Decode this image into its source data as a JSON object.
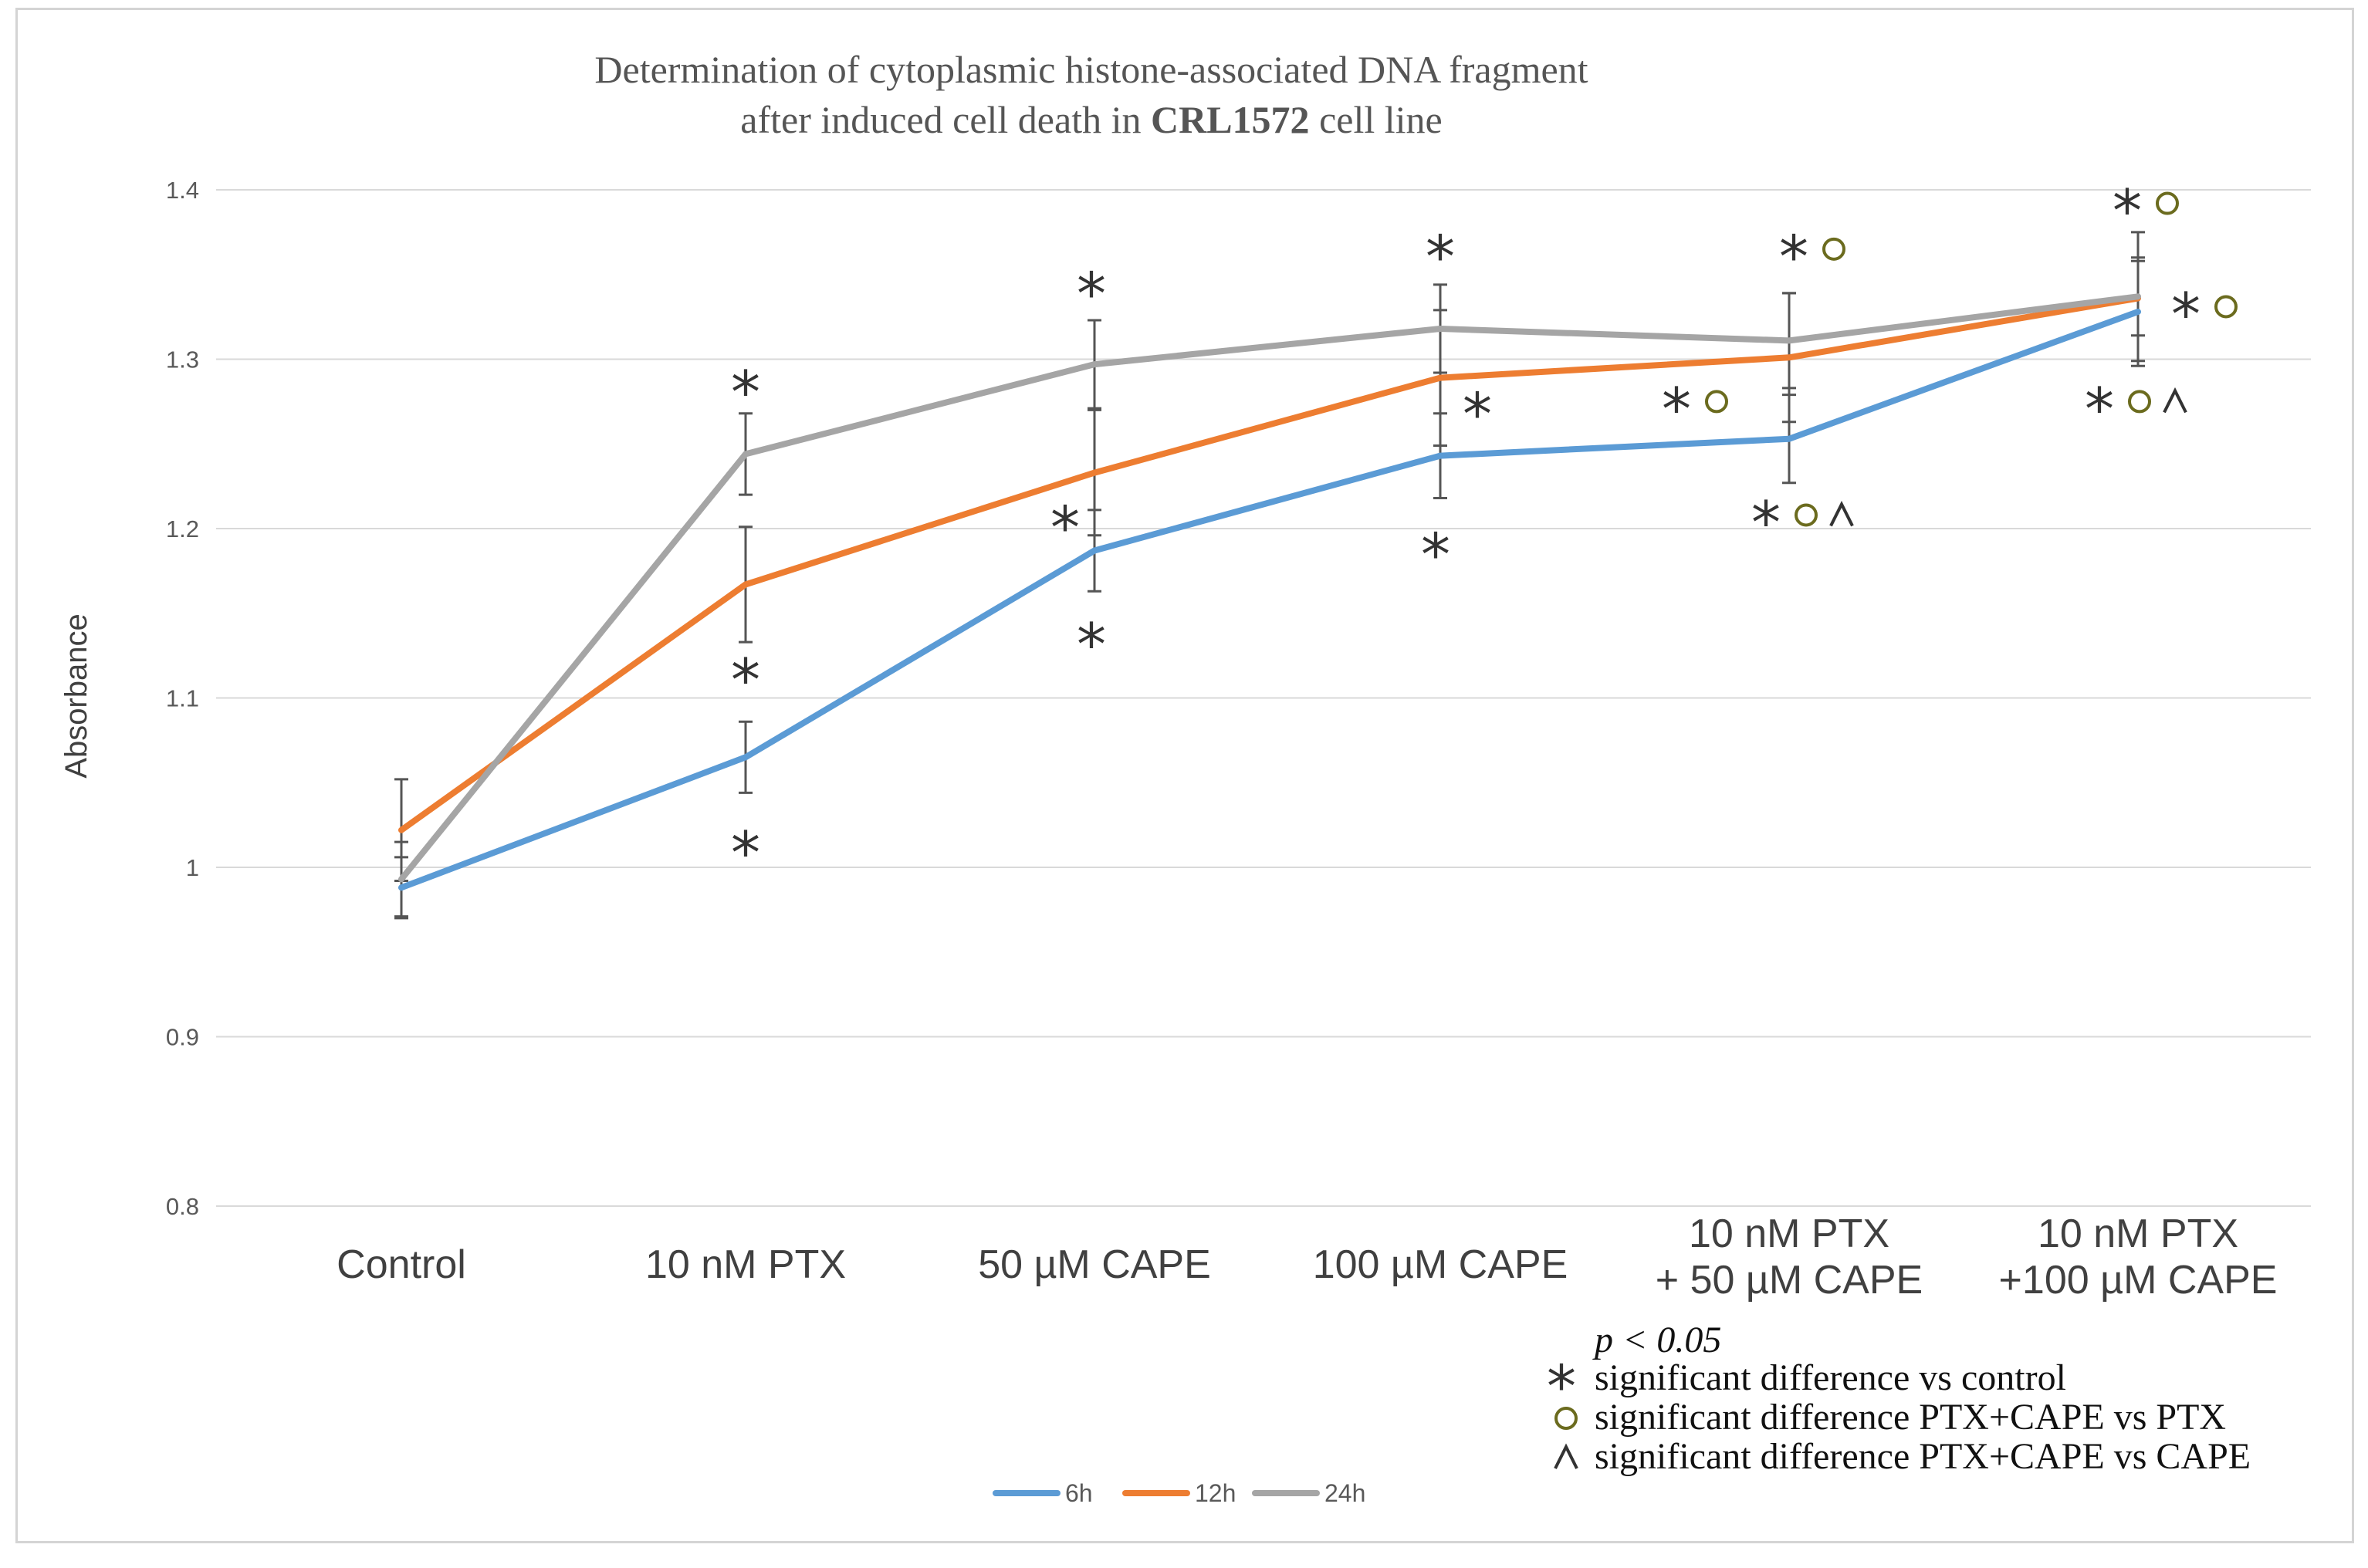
{
  "chart_data": {
    "type": "line",
    "title_line1": "Determination of cytoplasmic histone-associated DNA fragment",
    "title_line2_pre": "after induced cell death in ",
    "title_line2_bold": "CRL1572",
    "title_line2_post": " cell line",
    "ylabel": "Absorbance",
    "xlabel": "",
    "ylim": [
      0.8,
      1.4
    ],
    "yticks": [
      "0.8",
      "0.9",
      "1",
      "1.1",
      "1.2",
      "1.3",
      "1.4"
    ],
    "grid": true,
    "legend_position": "bottom-center",
    "categories": [
      [
        "Control"
      ],
      [
        "10 nM  PTX"
      ],
      [
        "50 µM  CAPE"
      ],
      [
        "100 µM  CAPE"
      ],
      [
        "10 nM  PTX",
        "+ 50 µM  CAPE"
      ],
      [
        "10 nM  PTX",
        "+100 µM  CAPE"
      ]
    ],
    "series": [
      {
        "name": "6h",
        "color": "#5B9BD5",
        "values": [
          0.988,
          1.065,
          1.187,
          1.243,
          1.253,
          1.328
        ],
        "errors": [
          0.018,
          0.021,
          0.024,
          0.025,
          0.026,
          0.032
        ]
      },
      {
        "name": "12h",
        "color": "#ED7D31",
        "values": [
          1.022,
          1.167,
          1.233,
          1.289,
          1.301,
          1.336
        ],
        "errors": [
          0.03,
          0.034,
          0.037,
          0.04,
          0.038,
          0.022
        ]
      },
      {
        "name": "24h",
        "color": "#A5A5A5",
        "values": [
          0.993,
          1.244,
          1.297,
          1.318,
          1.311,
          1.337
        ],
        "errors": [
          0.022,
          0.024,
          0.026,
          0.026,
          0.028,
          0.038
        ]
      }
    ],
    "annotations": [
      {
        "cat": 1,
        "y": 1.285,
        "dx": 0,
        "symbols": "*"
      },
      {
        "cat": 1,
        "y": 1.115,
        "dx": 0,
        "symbols": "*"
      },
      {
        "cat": 1,
        "y": 1.013,
        "dx": 0,
        "symbols": "*"
      },
      {
        "cat": 2,
        "y": 1.343,
        "dx": -4,
        "symbols": "*"
      },
      {
        "cat": 2,
        "y": 1.205,
        "dx": -38,
        "symbols": "*"
      },
      {
        "cat": 2,
        "y": 1.136,
        "dx": -4,
        "symbols": "*"
      },
      {
        "cat": 3,
        "y": 1.365,
        "dx": 0,
        "symbols": "*"
      },
      {
        "cat": 3,
        "y": 1.272,
        "dx": 48,
        "symbols": "*"
      },
      {
        "cat": 3,
        "y": 1.189,
        "dx": -6,
        "symbols": "*"
      },
      {
        "cat": 4,
        "y": 1.365,
        "dx": 6,
        "symbols": "*o"
      },
      {
        "cat": 4,
        "y": 1.275,
        "dx": -146,
        "symbols": "*o"
      },
      {
        "cat": 4,
        "y": 1.208,
        "dx": -30,
        "symbols": "*o^"
      },
      {
        "cat": 5,
        "y": 1.392,
        "dx": -14,
        "symbols": "*o"
      },
      {
        "cat": 5,
        "y": 1.331,
        "dx": 62,
        "symbols": "*o"
      },
      {
        "cat": 5,
        "y": 1.275,
        "dx": -50,
        "symbols": "*o^"
      }
    ],
    "sig_legend": {
      "p_text": "p < 0.05",
      "items": [
        {
          "symbol": "*",
          "text": "significant difference vs control"
        },
        {
          "symbol": "o",
          "text": "significant difference PTX+CAPE vs PTX"
        },
        {
          "symbol": "^",
          "text": "significant difference PTX+CAPE vs CAPE"
        }
      ]
    },
    "colors": {
      "circle": "#6b6b1e",
      "grid": "#d9d9d9",
      "errbar": "#555555"
    }
  }
}
